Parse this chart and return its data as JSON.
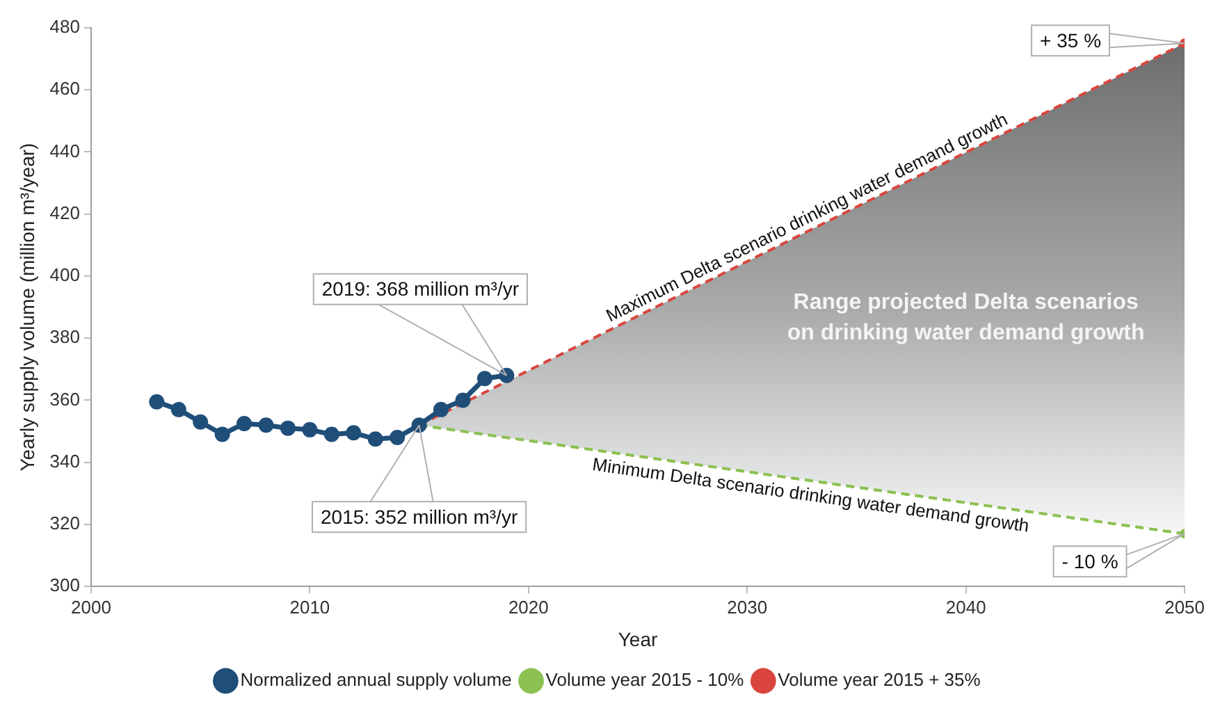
{
  "chart_data": {
    "type": "line",
    "xlabel": "Year",
    "ylabel": "Yearly supply volume (million m³/year)",
    "xlim": [
      2000,
      2050
    ],
    "xticks": [
      2000,
      2010,
      2020,
      2030,
      2040,
      2050
    ],
    "ylim": [
      300,
      480
    ],
    "yticks": [
      300,
      320,
      340,
      360,
      380,
      400,
      420,
      440,
      460,
      480
    ],
    "grid": false,
    "legend": "bottom",
    "series": [
      {
        "name": "Normalized annual supply volume",
        "color": "#1f4e79",
        "marker": "circle",
        "line_style": "solid",
        "x": [
          2003,
          2004,
          2005,
          2006,
          2007,
          2008,
          2009,
          2010,
          2011,
          2012,
          2013,
          2014,
          2015,
          2016,
          2017,
          2018,
          2019
        ],
        "values": [
          359.5,
          357,
          353,
          349,
          352.5,
          352,
          351,
          350.5,
          349,
          349.5,
          347.5,
          348,
          352,
          357,
          360,
          367,
          368
        ]
      },
      {
        "name": "Volume year 2015 + 35%",
        "color": "#d9453d",
        "marker": "circle",
        "line_style": "dashed",
        "x": [
          2015,
          2050
        ],
        "values": [
          352,
          475
        ],
        "lower": [
          352,
          317
        ],
        "upper": [
          352,
          475
        ]
      },
      {
        "name": "Volume year 2015 - 10%",
        "color": "#8cc152",
        "marker": "circle",
        "line_style": "dashed",
        "x": [
          2015,
          2050
        ],
        "values": [
          352,
          317
        ]
      }
    ],
    "annotations": [
      {
        "text": "2019: 368 million m³/yr",
        "x": 2019,
        "y": 368
      },
      {
        "text": "2015: 352 million m³/yr",
        "x": 2015,
        "y": 352
      },
      {
        "text": "+ 35 %",
        "x": 2050,
        "y": 475
      },
      {
        "text": "- 10 %",
        "x": 2050,
        "y": 317
      },
      {
        "text": "Maximum Delta scenario drinking water demand growth",
        "x": 2033,
        "y": 415
      },
      {
        "text": "Minimum Delta scenario drinking water demand growth",
        "x": 2033,
        "y": 334
      },
      "Range projected Delta scenarios on drinking water demand growth"
    ]
  }
}
